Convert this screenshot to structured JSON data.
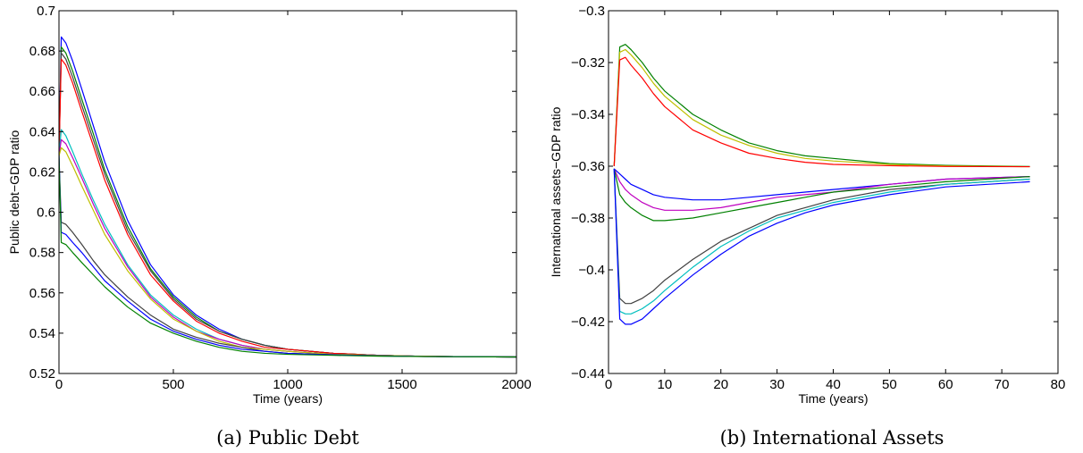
{
  "chart_data": [
    {
      "type": "line",
      "caption": "(a) Public Debt",
      "xlabel": "Time (years)",
      "ylabel": "Public debt−GDP ratio",
      "xlim": [
        0,
        2000
      ],
      "ylim": [
        0.52,
        0.7
      ],
      "xticks": [
        0,
        500,
        1000,
        1500,
        2000
      ],
      "yticks": [
        0.52,
        0.54,
        0.56,
        0.58,
        0.6,
        0.62,
        0.64,
        0.66,
        0.68,
        0.7
      ],
      "xtick_labels": [
        "0",
        "500",
        "1000",
        "1500",
        "2000"
      ],
      "ytick_labels": [
        "0.52",
        "0.54",
        "0.56",
        "0.58",
        "0.6",
        "0.62",
        "0.64",
        "0.66",
        "0.68",
        "0.7"
      ],
      "grid": false,
      "series": [
        {
          "color": "#0000ff",
          "x": [
            0,
            10,
            30,
            60,
            100,
            150,
            200,
            300,
            400,
            500,
            600,
            700,
            800,
            900,
            1000,
            1200,
            1400,
            1600,
            1800,
            2000
          ],
          "y": [
            0.628,
            0.687,
            0.684,
            0.675,
            0.661,
            0.643,
            0.625,
            0.596,
            0.574,
            0.559,
            0.549,
            0.542,
            0.537,
            0.534,
            0.532,
            0.53,
            0.529,
            0.5285,
            0.5283,
            0.5282
          ]
        },
        {
          "color": "#008000",
          "x": [
            0,
            10,
            30,
            60,
            100,
            150,
            200,
            300,
            400,
            500,
            600,
            700,
            800,
            900,
            1000,
            1200,
            1400,
            1600,
            1800,
            2000
          ],
          "y": [
            0.628,
            0.682,
            0.679,
            0.67,
            0.656,
            0.639,
            0.621,
            0.593,
            0.572,
            0.558,
            0.548,
            0.541,
            0.537,
            0.534,
            0.532,
            0.53,
            0.529,
            0.5285,
            0.5283,
            0.5282
          ]
        },
        {
          "color": "#404040",
          "x": [
            0,
            10,
            30,
            60,
            100,
            150,
            200,
            300,
            400,
            500,
            600,
            700,
            800,
            900,
            1000,
            1200,
            1400,
            1600,
            1800,
            2000
          ],
          "y": [
            0.628,
            0.679,
            0.676,
            0.667,
            0.653,
            0.636,
            0.619,
            0.591,
            0.571,
            0.557,
            0.547,
            0.541,
            0.537,
            0.534,
            0.532,
            0.53,
            0.529,
            0.5285,
            0.5283,
            0.5282
          ]
        },
        {
          "color": "#ff0000",
          "x": [
            0,
            10,
            30,
            60,
            100,
            150,
            200,
            300,
            400,
            500,
            600,
            700,
            800,
            900,
            1000,
            1200,
            1400,
            1600,
            1800,
            2000
          ],
          "y": [
            0.628,
            0.676,
            0.673,
            0.664,
            0.65,
            0.633,
            0.616,
            0.589,
            0.569,
            0.556,
            0.546,
            0.54,
            0.536,
            0.533,
            0.532,
            0.53,
            0.529,
            0.5285,
            0.5283,
            0.5282
          ]
        },
        {
          "color": "#00bfbf",
          "x": [
            0,
            10,
            30,
            60,
            100,
            150,
            200,
            300,
            400,
            500,
            600,
            700,
            800,
            900,
            1000,
            1200,
            1400,
            1600,
            1800,
            2000
          ],
          "y": [
            0.628,
            0.641,
            0.638,
            0.63,
            0.619,
            0.606,
            0.594,
            0.574,
            0.559,
            0.549,
            0.542,
            0.537,
            0.534,
            0.532,
            0.531,
            0.5295,
            0.529,
            0.5285,
            0.5283,
            0.5282
          ]
        },
        {
          "color": "#bf00bf",
          "x": [
            0,
            10,
            30,
            60,
            100,
            150,
            200,
            300,
            400,
            500,
            600,
            700,
            800,
            900,
            1000,
            1200,
            1400,
            1600,
            1800,
            2000
          ],
          "y": [
            0.628,
            0.636,
            0.634,
            0.627,
            0.617,
            0.604,
            0.592,
            0.573,
            0.558,
            0.548,
            0.541,
            0.537,
            0.534,
            0.532,
            0.531,
            0.5295,
            0.529,
            0.5285,
            0.5283,
            0.5282
          ]
        },
        {
          "color": "#bfbf00",
          "x": [
            0,
            10,
            30,
            60,
            100,
            150,
            200,
            300,
            400,
            500,
            600,
            700,
            800,
            900,
            1000,
            1200,
            1400,
            1600,
            1800,
            2000
          ],
          "y": [
            0.628,
            0.632,
            0.63,
            0.623,
            0.613,
            0.601,
            0.589,
            0.571,
            0.557,
            0.547,
            0.541,
            0.536,
            0.533,
            0.532,
            0.531,
            0.5295,
            0.529,
            0.5285,
            0.5283,
            0.5282
          ]
        },
        {
          "color": "#404040",
          "x": [
            0,
            10,
            30,
            60,
            100,
            150,
            200,
            300,
            400,
            500,
            600,
            700,
            800,
            900,
            1000,
            1200,
            1400,
            1600,
            1800,
            2000
          ],
          "y": [
            0.628,
            0.595,
            0.594,
            0.59,
            0.584,
            0.576,
            0.569,
            0.558,
            0.549,
            0.542,
            0.538,
            0.535,
            0.533,
            0.531,
            0.53,
            0.5293,
            0.5288,
            0.5284,
            0.5283,
            0.5282
          ]
        },
        {
          "color": "#0000ff",
          "x": [
            0,
            10,
            30,
            60,
            100,
            150,
            200,
            300,
            400,
            500,
            600,
            700,
            800,
            900,
            1000,
            1200,
            1400,
            1600,
            1800,
            2000
          ],
          "y": [
            0.628,
            0.59,
            0.589,
            0.585,
            0.58,
            0.573,
            0.566,
            0.556,
            0.547,
            0.541,
            0.537,
            0.534,
            0.532,
            0.531,
            0.53,
            0.5292,
            0.5287,
            0.5284,
            0.5283,
            0.5282
          ]
        },
        {
          "color": "#008000",
          "x": [
            0,
            10,
            30,
            60,
            100,
            150,
            200,
            300,
            400,
            500,
            600,
            700,
            800,
            900,
            1000,
            1200,
            1400,
            1600,
            1800,
            2000
          ],
          "y": [
            0.628,
            0.585,
            0.584,
            0.58,
            0.575,
            0.569,
            0.563,
            0.553,
            0.545,
            0.54,
            0.536,
            0.533,
            0.531,
            0.53,
            0.5295,
            0.529,
            0.5286,
            0.5284,
            0.5283,
            0.5282
          ]
        }
      ]
    },
    {
      "type": "line",
      "caption": "(b) International Assets",
      "xlabel": "Time (years)",
      "ylabel": "International assets−GDP ratio",
      "xlim": [
        0,
        80
      ],
      "ylim": [
        -0.44,
        -0.3
      ],
      "xticks": [
        0,
        10,
        20,
        30,
        40,
        50,
        60,
        70,
        80
      ],
      "yticks": [
        -0.44,
        -0.42,
        -0.4,
        -0.38,
        -0.36,
        -0.34,
        -0.32,
        -0.3
      ],
      "xtick_labels": [
        "0",
        "10",
        "20",
        "30",
        "40",
        "50",
        "60",
        "70",
        "80"
      ],
      "ytick_labels": [
        "−0.44",
        "−0.42",
        "−0.4",
        "−0.38",
        "−0.36",
        "−0.34",
        "−0.32",
        "−0.3"
      ],
      "grid": false,
      "series": [
        {
          "color": "#008000",
          "x": [
            1,
            2,
            3,
            4,
            6,
            8,
            10,
            15,
            20,
            25,
            30,
            35,
            40,
            50,
            60,
            75
          ],
          "y": [
            -0.36,
            -0.314,
            -0.313,
            -0.315,
            -0.32,
            -0.326,
            -0.331,
            -0.34,
            -0.346,
            -0.351,
            -0.354,
            -0.356,
            -0.357,
            -0.359,
            -0.3597,
            -0.3601
          ]
        },
        {
          "color": "#bfbf00",
          "x": [
            1,
            2,
            3,
            4,
            6,
            8,
            10,
            15,
            20,
            25,
            30,
            35,
            40,
            50,
            60,
            75
          ],
          "y": [
            -0.36,
            -0.316,
            -0.315,
            -0.317,
            -0.322,
            -0.328,
            -0.333,
            -0.342,
            -0.348,
            -0.352,
            -0.355,
            -0.357,
            -0.358,
            -0.3593,
            -0.3599,
            -0.3602
          ]
        },
        {
          "color": "#ff0000",
          "x": [
            1,
            2,
            3,
            4,
            6,
            8,
            10,
            15,
            20,
            25,
            30,
            35,
            40,
            50,
            60,
            75
          ],
          "y": [
            -0.36,
            -0.319,
            -0.318,
            -0.321,
            -0.326,
            -0.332,
            -0.337,
            -0.346,
            -0.351,
            -0.355,
            -0.357,
            -0.3585,
            -0.3593,
            -0.3598,
            -0.3601,
            -0.3602
          ]
        },
        {
          "color": "#0000ff",
          "x": [
            1,
            2,
            3,
            4,
            6,
            8,
            10,
            15,
            20,
            25,
            30,
            35,
            40,
            50,
            60,
            75
          ],
          "y": [
            -0.361,
            -0.363,
            -0.365,
            -0.367,
            -0.369,
            -0.371,
            -0.372,
            -0.373,
            -0.373,
            -0.372,
            -0.371,
            -0.37,
            -0.369,
            -0.367,
            -0.365,
            -0.364
          ]
        },
        {
          "color": "#bf00bf",
          "x": [
            1,
            2,
            3,
            4,
            6,
            8,
            10,
            15,
            20,
            25,
            30,
            35,
            40,
            50,
            60,
            75
          ],
          "y": [
            -0.361,
            -0.366,
            -0.369,
            -0.371,
            -0.374,
            -0.376,
            -0.377,
            -0.377,
            -0.376,
            -0.374,
            -0.372,
            -0.371,
            -0.37,
            -0.367,
            -0.365,
            -0.364
          ]
        },
        {
          "color": "#008000",
          "x": [
            1,
            2,
            3,
            4,
            6,
            8,
            10,
            15,
            20,
            25,
            30,
            35,
            40,
            50,
            60,
            75
          ],
          "y": [
            -0.361,
            -0.371,
            -0.374,
            -0.376,
            -0.379,
            -0.381,
            -0.381,
            -0.38,
            -0.378,
            -0.376,
            -0.374,
            -0.372,
            -0.37,
            -0.368,
            -0.366,
            -0.364
          ]
        },
        {
          "color": "#404040",
          "x": [
            1,
            2,
            3,
            4,
            6,
            8,
            10,
            15,
            20,
            25,
            30,
            35,
            40,
            50,
            60,
            75
          ],
          "y": [
            -0.361,
            -0.411,
            -0.413,
            -0.413,
            -0.411,
            -0.408,
            -0.404,
            -0.396,
            -0.389,
            -0.384,
            -0.379,
            -0.376,
            -0.373,
            -0.369,
            -0.367,
            -0.365
          ]
        },
        {
          "color": "#00bfbf",
          "x": [
            1,
            2,
            3,
            4,
            6,
            8,
            10,
            15,
            20,
            25,
            30,
            35,
            40,
            50,
            60,
            75
          ],
          "y": [
            -0.361,
            -0.416,
            -0.417,
            -0.417,
            -0.415,
            -0.412,
            -0.408,
            -0.399,
            -0.391,
            -0.385,
            -0.38,
            -0.377,
            -0.374,
            -0.37,
            -0.367,
            -0.365
          ]
        },
        {
          "color": "#0000ff",
          "x": [
            1,
            2,
            3,
            4,
            6,
            8,
            10,
            15,
            20,
            25,
            30,
            35,
            40,
            50,
            60,
            75
          ],
          "y": [
            -0.361,
            -0.419,
            -0.421,
            -0.421,
            -0.419,
            -0.415,
            -0.411,
            -0.402,
            -0.394,
            -0.387,
            -0.382,
            -0.378,
            -0.375,
            -0.371,
            -0.368,
            -0.366
          ]
        }
      ]
    }
  ]
}
